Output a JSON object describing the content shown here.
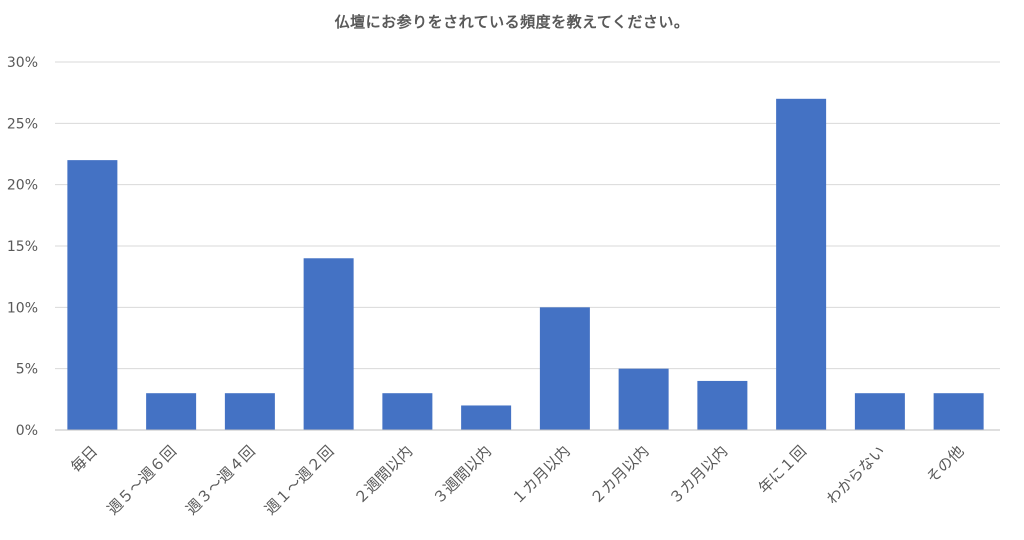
{
  "chart_data": {
    "type": "bar",
    "title": "仏壇にお参りをされている頻度を教えてください。",
    "xlabel": "",
    "ylabel": "",
    "categories": [
      "毎日",
      "週５～週６回",
      "週３～週４回",
      "週１～週２回",
      "２週間以内",
      "３週間以内",
      "１カ月以内",
      "２カ月以内",
      "３カ月以内",
      "年に１回",
      "わからない",
      "その他"
    ],
    "values": [
      22,
      3,
      3,
      14,
      3,
      2,
      10,
      5,
      4,
      27,
      3,
      3
    ],
    "value_unit": "%",
    "ylim": [
      0,
      30
    ],
    "yticks": [
      "0%",
      "5%",
      "10%",
      "15%",
      "20%",
      "25%",
      "30%"
    ],
    "ytick_values": [
      0,
      5,
      10,
      15,
      20,
      25,
      30
    ],
    "grid": true,
    "legend": "none",
    "bar_color": "#4472C4",
    "grid_color": "#D9D9D9",
    "axis_color": "#BFBFBF",
    "text_color": "#595959"
  }
}
